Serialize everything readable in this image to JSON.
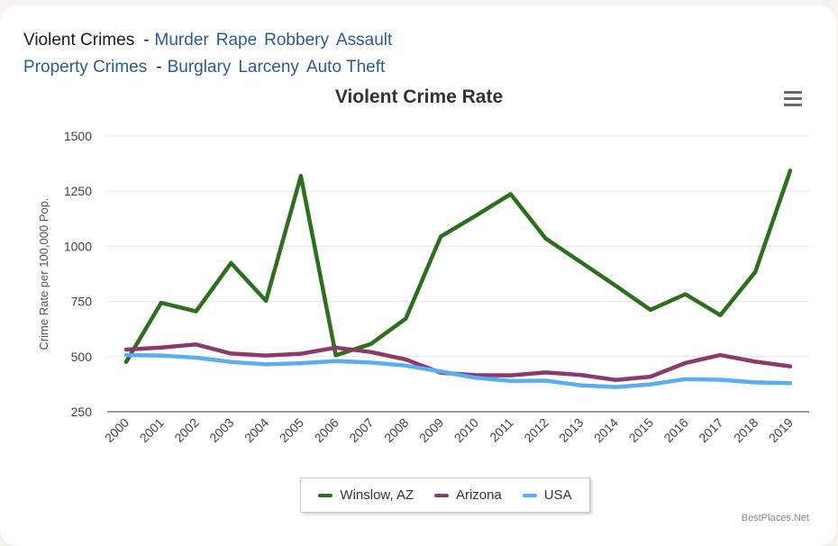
{
  "nav": {
    "violent_heading": "Violent Crimes",
    "violent_links": [
      "Murder",
      "Rape",
      "Robbery",
      "Assault"
    ],
    "property_heading": "Property Crimes",
    "property_links": [
      "Burglary",
      "Larceny",
      "Auto Theft"
    ],
    "separator": "-"
  },
  "menu_icon": "hamburger-menu-icon",
  "credit": "BestPlaces.Net",
  "colors": {
    "winslow": "#2d6e1f",
    "arizona": "#8b3a6b",
    "usa": "#5aaef0",
    "link": "#2a5b9c"
  },
  "chart_data": {
    "type": "line",
    "title": "Violent Crime Rate",
    "xlabel": "",
    "ylabel": "Crime Rate per 100,000 Pop.",
    "categories": [
      "2000",
      "2001",
      "2002",
      "2003",
      "2004",
      "2005",
      "2006",
      "2007",
      "2008",
      "2009",
      "2010",
      "2011",
      "2012",
      "2013",
      "2014",
      "2015",
      "2016",
      "2017",
      "2018",
      "2019"
    ],
    "ylim": [
      250,
      1500
    ],
    "yticks": [
      250,
      500,
      750,
      1000,
      1250,
      1500
    ],
    "grid": true,
    "legend": "bottom-center",
    "series": [
      {
        "name": "Winslow, AZ",
        "color": "#2d6e1f",
        "values": [
          476,
          744,
          705,
          924,
          753,
          1319,
          506,
          557,
          672,
          1044,
          1139,
          1237,
          1036,
          929,
          822,
          712,
          783,
          688,
          884,
          1343
        ]
      },
      {
        "name": "Arizona",
        "color": "#8b3a6b",
        "values": [
          532,
          541,
          555,
          514,
          505,
          513,
          541,
          521,
          487,
          427,
          416,
          415,
          428,
          417,
          394,
          409,
          471,
          507,
          477,
          456
        ]
      },
      {
        "name": "USA",
        "color": "#5aaef0",
        "values": [
          507,
          505,
          495,
          476,
          465,
          470,
          480,
          473,
          459,
          432,
          404,
          390,
          391,
          370,
          362,
          374,
          398,
          395,
          383,
          380
        ]
      }
    ]
  }
}
